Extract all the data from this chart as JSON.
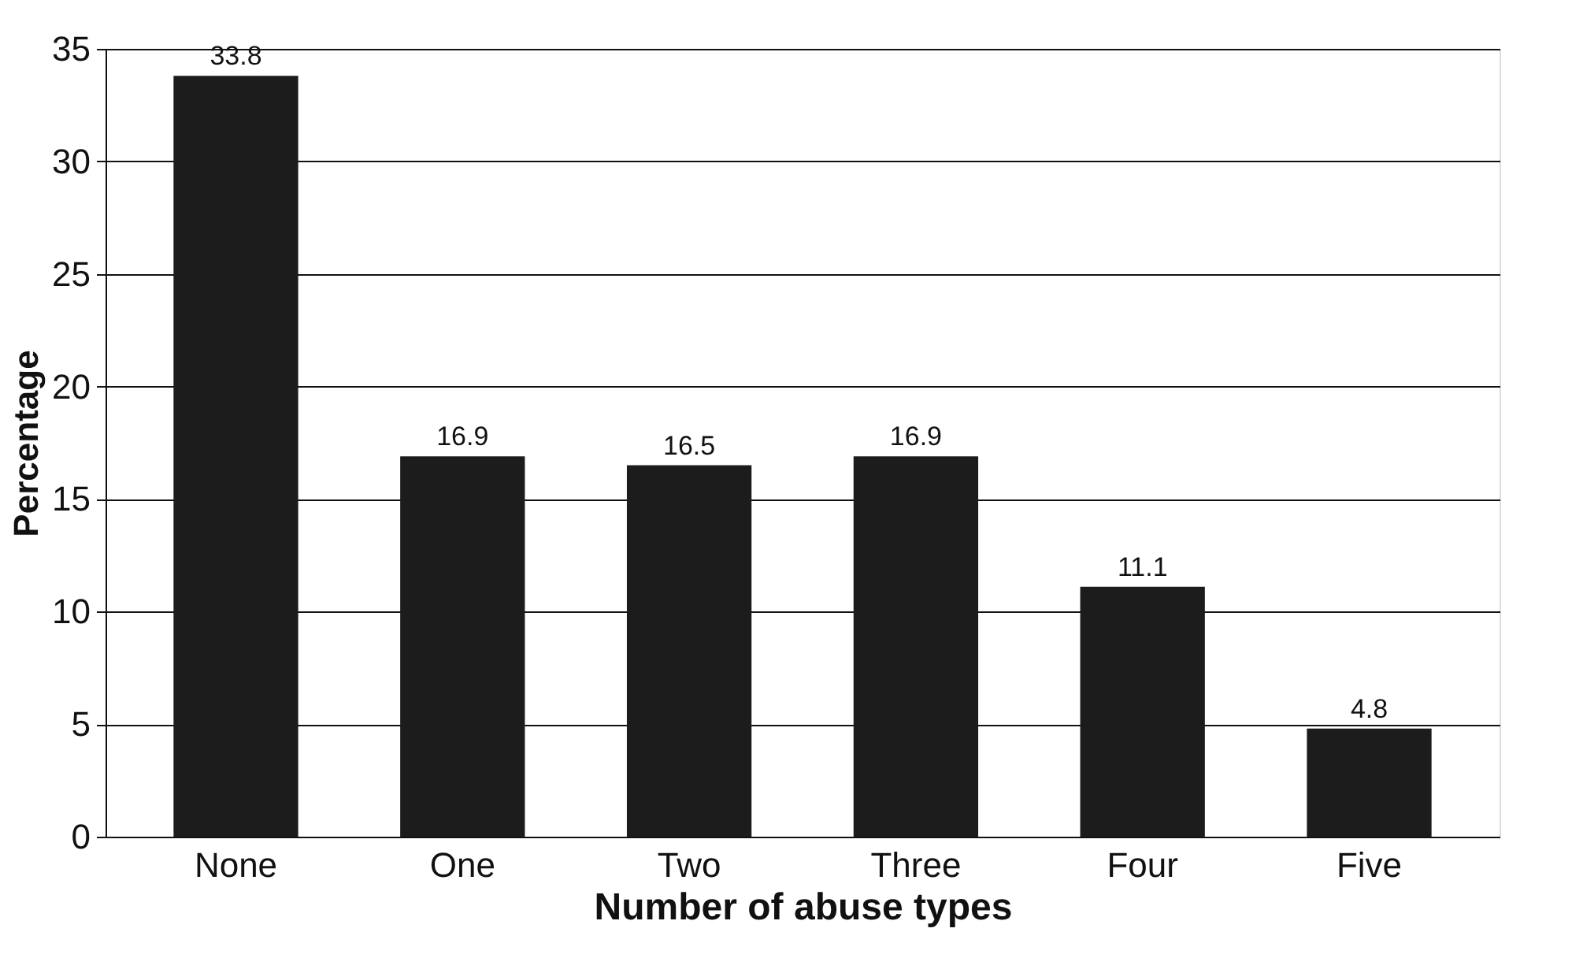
{
  "chart_data": {
    "type": "bar",
    "xlabel": "Number of abuse types",
    "ylabel": "Percentage",
    "categories": [
      "None",
      "One",
      "Two",
      "Three",
      "Four",
      "Five"
    ],
    "values": [
      33.8,
      16.9,
      16.5,
      16.9,
      11.1,
      4.8
    ],
    "color": "#1c1c1c",
    "ylim": [
      0,
      35
    ],
    "yticks": [
      0,
      5,
      10,
      15,
      20,
      25,
      30,
      35
    ],
    "grid": "y",
    "data_labels": true
  }
}
